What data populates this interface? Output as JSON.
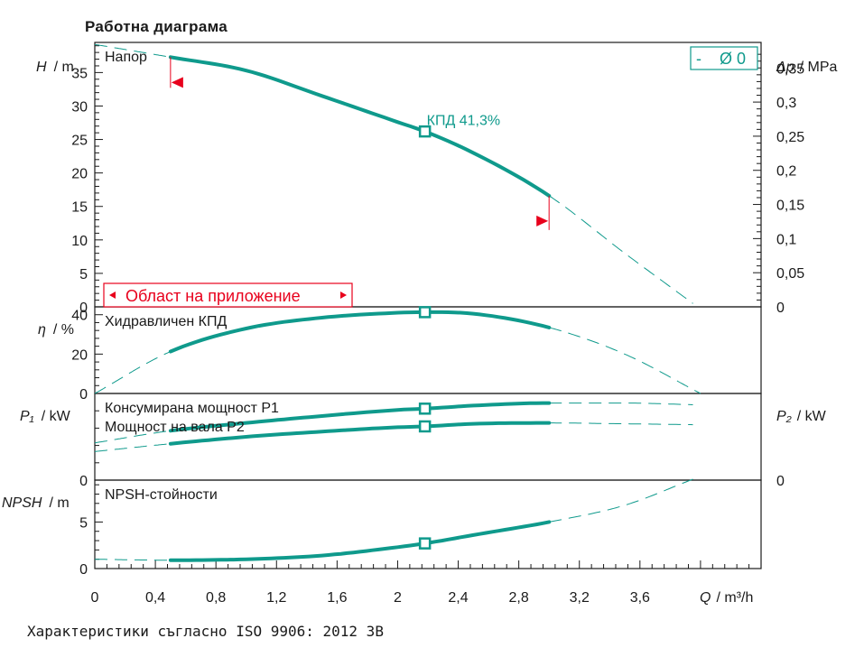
{
  "title": "Работна диаграма",
  "footer": "Характеристики съгласно ISO 9906: 2012 3B",
  "colors": {
    "curve": "#0f9a8c",
    "range": "#e8001c",
    "axis": "#1a1a1a"
  },
  "chart_data": {
    "type": "line",
    "x_axis": {
      "label_var": "Q",
      "label_unit": "/ m³/h",
      "range": [
        0,
        4.4
      ],
      "ticks": [
        0,
        0.4,
        0.8,
        1.2,
        1.6,
        2,
        2.4,
        2.8,
        3.2,
        3.6
      ],
      "tick_labels": [
        "0",
        "0,4",
        "0,8",
        "1,2",
        "1,6",
        "2",
        "2,4",
        "2,8",
        "3,2",
        "3,6"
      ]
    },
    "operating_point": {
      "q": 2.18,
      "label": "КПД  41,3%"
    },
    "impeller_label": "-    Ø 0",
    "application_range": {
      "label": "Област на приложение",
      "q_min": 0.5,
      "q_max": 3.0
    },
    "panels": [
      {
        "id": "head",
        "name": "Напор",
        "y_var": "H",
        "y_unit": "/ m",
        "y_range": [
          0,
          39.5
        ],
        "y_ticks": [
          0,
          5,
          10,
          15,
          20,
          25,
          30,
          35
        ],
        "y_tick_labels": [
          "0",
          "5",
          "10",
          "15",
          "20",
          "25",
          "30",
          "35"
        ],
        "right_axis": {
          "var": "Δp",
          "unit": "/ MPa",
          "ticks": [
            0,
            0.05,
            0.1,
            0.15,
            0.2,
            0.25,
            0.3,
            0.35
          ],
          "tick_labels": [
            "0",
            "0,05",
            "0,1",
            "0,15",
            "0,2",
            "0,25",
            "0,3",
            "0,35"
          ]
        },
        "series": [
          {
            "x": [
              0,
              0.5,
              1.0,
              1.5,
              2.0,
              2.18,
              2.5,
              3.0,
              3.5,
              3.95
            ],
            "y": [
              39.2,
              37.3,
              35.3,
              31.5,
              27.6,
              26.2,
              23.0,
              16.6,
              8.0,
              0.5
            ]
          }
        ]
      },
      {
        "id": "efficiency",
        "name": "Хидравличен КПД",
        "y_var": "η",
        "y_unit": "/ %",
        "y_range": [
          0,
          44
        ],
        "y_ticks": [
          0,
          20,
          40
        ],
        "y_tick_labels": [
          "0",
          "20",
          "40"
        ],
        "series": [
          {
            "x": [
              0,
              0.5,
              1.0,
              1.5,
              2.0,
              2.18,
              2.5,
              3.0,
              3.5,
              4.0
            ],
            "y": [
              0,
              21.3,
              33.0,
              38.5,
              41.0,
              41.3,
              40.5,
              33.5,
              20.0,
              0
            ]
          }
        ]
      },
      {
        "id": "power",
        "name": "",
        "y_var": "P₁",
        "y_unit": "/ kW",
        "y_range": [
          0,
          100
        ],
        "y_ticks": [
          0
        ],
        "y_tick_labels": [
          "0"
        ],
        "right_axis": {
          "var": "P₂",
          "unit": "/ kW",
          "ticks": [
            0
          ],
          "tick_labels": [
            "0"
          ]
        },
        "series": [
          {
            "name": "Консумирана мощност P1",
            "x": [
              0,
              0.5,
              1.0,
              1.5,
              2.0,
              2.18,
              2.5,
              3.0,
              3.5,
              3.95
            ],
            "y": [
              43,
              57,
              66,
              74,
              81,
              82.5,
              86,
              89,
              89,
              87
            ]
          },
          {
            "name": "Мощност на вала P2",
            "x": [
              0,
              0.5,
              1.0,
              1.5,
              2.0,
              2.18,
              2.5,
              3.0,
              3.5,
              3.95
            ],
            "y": [
              33,
              42,
              50,
              56,
              61,
              62,
              65,
              66,
              65,
              64
            ]
          }
        ]
      },
      {
        "id": "npsh",
        "name": "NPSH-стойности",
        "y_var": "NPSH",
        "y_unit": "/ m",
        "y_range": [
          0,
          9.5
        ],
        "y_ticks": [
          0,
          5
        ],
        "y_tick_labels": [
          "0",
          "5"
        ],
        "series": [
          {
            "x": [
              0,
              0.5,
              1.0,
              1.5,
              2.0,
              2.18,
              2.5,
              3.0,
              3.5,
              3.95
            ],
            "y": [
              1.0,
              0.9,
              1.0,
              1.4,
              2.3,
              2.7,
              3.6,
              5.0,
              6.8,
              9.6
            ]
          }
        ]
      }
    ]
  }
}
